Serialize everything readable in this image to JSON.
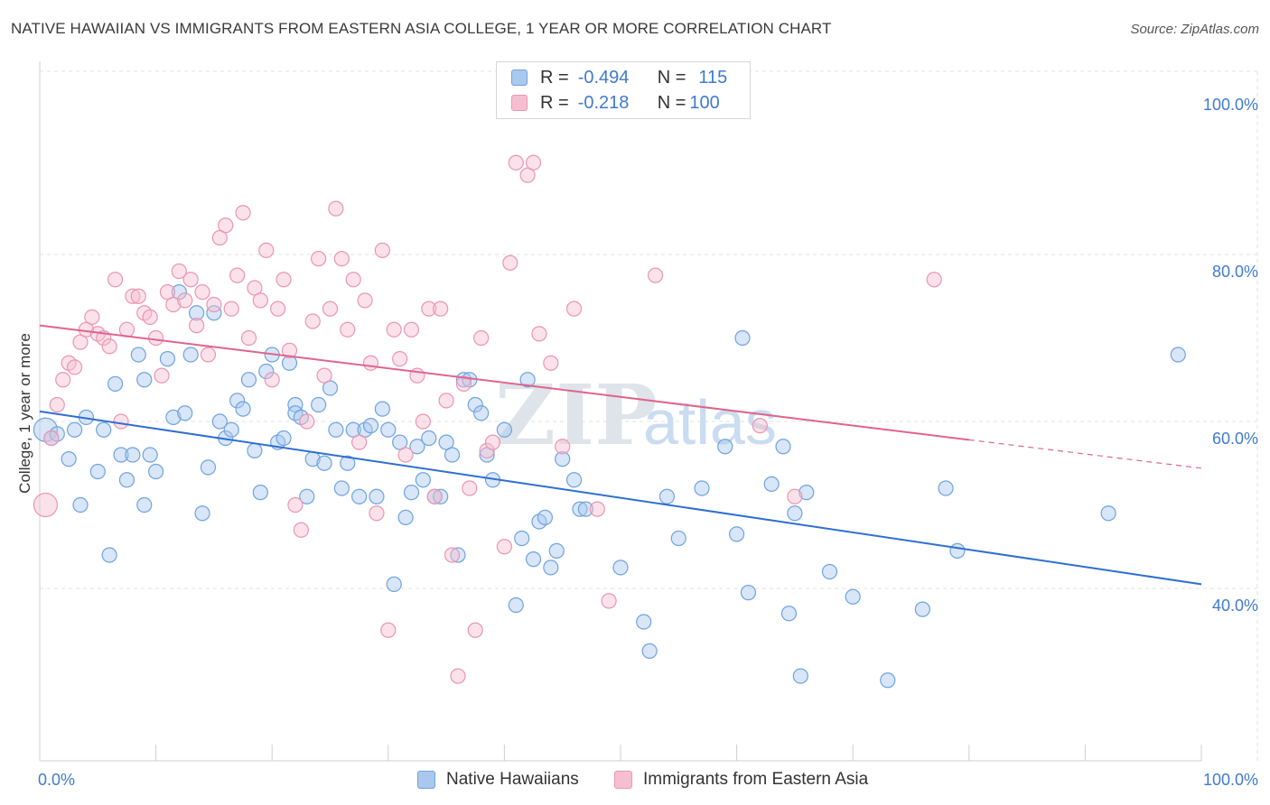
{
  "chart_data": {
    "type": "scatter",
    "title": "NATIVE HAWAIIAN VS IMMIGRANTS FROM EASTERN ASIA COLLEGE, 1 YEAR OR MORE CORRELATION CHART",
    "source": "Source: ZipAtlas.com",
    "xlabel": "",
    "ylabel": "College, 1 year or more",
    "xlim": [
      0,
      100
    ],
    "ylim": [
      20,
      103
    ],
    "x_ticks": [
      {
        "value": 0,
        "label": "0.0%"
      },
      {
        "value": 100,
        "label": "100.0%"
      }
    ],
    "y_ticks": [
      {
        "value": 40,
        "label": "40.0%"
      },
      {
        "value": 60,
        "label": "60.0%"
      },
      {
        "value": 80,
        "label": "80.0%"
      },
      {
        "value": 100,
        "label": "100.0%"
      }
    ],
    "grid": true,
    "watermark": {
      "zip": "ZIP",
      "atlas": "atlas"
    },
    "legend": {
      "position": "top-center",
      "r_label": "R =",
      "n_label": "N =",
      "rows": [
        {
          "name": "Native Hawaiians",
          "r": "-0.494",
          "n": "115"
        },
        {
          "name": "Immigrants from Eastern Asia",
          "r": "-0.218",
          "n": "100"
        }
      ]
    },
    "series": [
      {
        "name": "Native Hawaiians",
        "color": "#6fa3e0",
        "fill": "#a9c8ee",
        "line_color": "#2e6fd0",
        "trend": {
          "x0": 0,
          "y0": 61.2,
          "x1": 100,
          "y1": 40.5
        },
        "points": [
          [
            0.5,
            59
          ],
          [
            1,
            58
          ],
          [
            1.5,
            58.5
          ],
          [
            2.5,
            55.5
          ],
          [
            3,
            59
          ],
          [
            3.5,
            50
          ],
          [
            4,
            60.5
          ],
          [
            5,
            54
          ],
          [
            5.5,
            59
          ],
          [
            6,
            44
          ],
          [
            6.5,
            64.5
          ],
          [
            7,
            56
          ],
          [
            7.5,
            53
          ],
          [
            8,
            56
          ],
          [
            8.5,
            68
          ],
          [
            9,
            65
          ],
          [
            9,
            50
          ],
          [
            9.5,
            56
          ],
          [
            10,
            54
          ],
          [
            11,
            67.5
          ],
          [
            11.5,
            60.5
          ],
          [
            12,
            75.5
          ],
          [
            12.5,
            61
          ],
          [
            13,
            68
          ],
          [
            13.5,
            73
          ],
          [
            14,
            49
          ],
          [
            14.5,
            54.5
          ],
          [
            15,
            73
          ],
          [
            15.5,
            60
          ],
          [
            16,
            58
          ],
          [
            16.5,
            59
          ],
          [
            17,
            62.5
          ],
          [
            17.5,
            61.5
          ],
          [
            18,
            65
          ],
          [
            18.5,
            56.5
          ],
          [
            19,
            51.5
          ],
          [
            19.5,
            66
          ],
          [
            20,
            68
          ],
          [
            20.5,
            57.5
          ],
          [
            21,
            58
          ],
          [
            21.5,
            67
          ],
          [
            22,
            62
          ],
          [
            22,
            61
          ],
          [
            22.5,
            60.5
          ],
          [
            23,
            51
          ],
          [
            23.5,
            55.5
          ],
          [
            24,
            62
          ],
          [
            24.5,
            55
          ],
          [
            25,
            64
          ],
          [
            25.5,
            59
          ],
          [
            26,
            52
          ],
          [
            26.5,
            55
          ],
          [
            27,
            59
          ],
          [
            27.5,
            51
          ],
          [
            28,
            59
          ],
          [
            28.5,
            59.5
          ],
          [
            29,
            51
          ],
          [
            29.5,
            61.5
          ],
          [
            30,
            59
          ],
          [
            30.5,
            40.5
          ],
          [
            31,
            57.5
          ],
          [
            31.5,
            48.5
          ],
          [
            32,
            51.5
          ],
          [
            32.5,
            57
          ],
          [
            33,
            53
          ],
          [
            33.5,
            58
          ],
          [
            34,
            51
          ],
          [
            34.5,
            51
          ],
          [
            35,
            57.5
          ],
          [
            35.5,
            56
          ],
          [
            36,
            44
          ],
          [
            36.5,
            65
          ],
          [
            37,
            65
          ],
          [
            37.5,
            62
          ],
          [
            38,
            61
          ],
          [
            38.5,
            56
          ],
          [
            39,
            53
          ],
          [
            40,
            59
          ],
          [
            41,
            38
          ],
          [
            41.5,
            46
          ],
          [
            42,
            65
          ],
          [
            42.5,
            43.5
          ],
          [
            43,
            48
          ],
          [
            43.5,
            48.5
          ],
          [
            44,
            42.5
          ],
          [
            44.5,
            44.5
          ],
          [
            45,
            55.5
          ],
          [
            46,
            53
          ],
          [
            46.5,
            49.5
          ],
          [
            47,
            49.5
          ],
          [
            50,
            42.5
          ],
          [
            52,
            36
          ],
          [
            52.5,
            32.5
          ],
          [
            54,
            51
          ],
          [
            55,
            46
          ],
          [
            57,
            52
          ],
          [
            59,
            57
          ],
          [
            60,
            46.5
          ],
          [
            60.5,
            70
          ],
          [
            61,
            39.5
          ],
          [
            63,
            52.5
          ],
          [
            64,
            57
          ],
          [
            64.5,
            37
          ],
          [
            65,
            49
          ],
          [
            65.5,
            29.5
          ],
          [
            66,
            51.5
          ],
          [
            68,
            42
          ],
          [
            70,
            39
          ],
          [
            73,
            29
          ],
          [
            76,
            37.5
          ],
          [
            78,
            52
          ],
          [
            79,
            44.5
          ],
          [
            92,
            49
          ],
          [
            98,
            68
          ]
        ]
      },
      {
        "name": "Immigrants from Eastern Asia",
        "color": "#ec95b1",
        "fill": "#f6bfd1",
        "line_color": "#e0648c",
        "trend": {
          "x0": 0,
          "y0": 71.5,
          "x1": 80,
          "y1": 57.8
        },
        "trend_dashed": {
          "x0": 80,
          "y0": 57.8,
          "x1": 100,
          "y1": 54.4
        },
        "points": [
          [
            0.5,
            50
          ],
          [
            1,
            58
          ],
          [
            1.5,
            62
          ],
          [
            2,
            65
          ],
          [
            2.5,
            67
          ],
          [
            3,
            66.5
          ],
          [
            3.5,
            69.5
          ],
          [
            4,
            71
          ],
          [
            4.5,
            72.5
          ],
          [
            5,
            70.5
          ],
          [
            5.5,
            70
          ],
          [
            6,
            69
          ],
          [
            6.5,
            77
          ],
          [
            7,
            60
          ],
          [
            7.5,
            71
          ],
          [
            8,
            75
          ],
          [
            8.5,
            75
          ],
          [
            9,
            73
          ],
          [
            9.5,
            72.5
          ],
          [
            10,
            70
          ],
          [
            10.5,
            65.5
          ],
          [
            11,
            75.5
          ],
          [
            11.5,
            74
          ],
          [
            12,
            78
          ],
          [
            12.5,
            74.5
          ],
          [
            13,
            77
          ],
          [
            13.5,
            71.5
          ],
          [
            14,
            75.5
          ],
          [
            14.5,
            68
          ],
          [
            15,
            74
          ],
          [
            15.5,
            82
          ],
          [
            16,
            83.5
          ],
          [
            16.5,
            73.5
          ],
          [
            17,
            77.5
          ],
          [
            17.5,
            85
          ],
          [
            18,
            70
          ],
          [
            18.5,
            76
          ],
          [
            19,
            74.5
          ],
          [
            19.5,
            80.5
          ],
          [
            20,
            65
          ],
          [
            20.5,
            73.5
          ],
          [
            21,
            77
          ],
          [
            21.5,
            68.5
          ],
          [
            22,
            50
          ],
          [
            22.5,
            47
          ],
          [
            23,
            60
          ],
          [
            23.5,
            72
          ],
          [
            24,
            79.5
          ],
          [
            24.5,
            65.5
          ],
          [
            25,
            73.5
          ],
          [
            25.5,
            85.5
          ],
          [
            26,
            79.5
          ],
          [
            26.5,
            71
          ],
          [
            27,
            77
          ],
          [
            27.5,
            57.5
          ],
          [
            28,
            74.5
          ],
          [
            28.5,
            67
          ],
          [
            29,
            49
          ],
          [
            29.5,
            80.5
          ],
          [
            30,
            35
          ],
          [
            30.5,
            71
          ],
          [
            31,
            67.5
          ],
          [
            31.5,
            56
          ],
          [
            32,
            71
          ],
          [
            32.5,
            65.5
          ],
          [
            33,
            60
          ],
          [
            33.5,
            73.5
          ],
          [
            34,
            51
          ],
          [
            34.5,
            73.5
          ],
          [
            35,
            62.5
          ],
          [
            35.5,
            44
          ],
          [
            36,
            29.5
          ],
          [
            36.5,
            64.5
          ],
          [
            37,
            52
          ],
          [
            37.5,
            35
          ],
          [
            38,
            70
          ],
          [
            38.5,
            56.5
          ],
          [
            39,
            57.5
          ],
          [
            40,
            45
          ],
          [
            40.5,
            79
          ],
          [
            41,
            91
          ],
          [
            42,
            89.5
          ],
          [
            42.5,
            91
          ],
          [
            43,
            70.5
          ],
          [
            44,
            67
          ],
          [
            45,
            57
          ],
          [
            46,
            73.5
          ],
          [
            48,
            49.5
          ],
          [
            49,
            38.5
          ],
          [
            53,
            77.5
          ],
          [
            62,
            59.5
          ],
          [
            65,
            51
          ],
          [
            77,
            77
          ]
        ]
      }
    ]
  }
}
